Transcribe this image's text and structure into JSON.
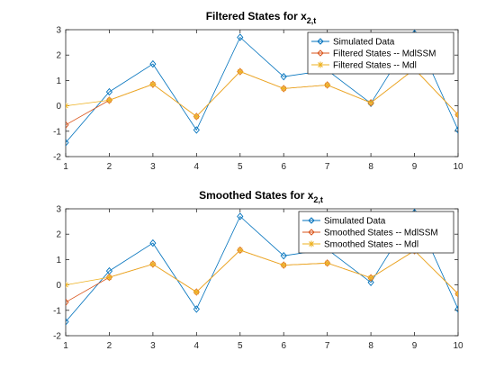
{
  "colors": {
    "simulated": "#0072bd",
    "mdlssm": "#d95319",
    "mdl": "#edb120",
    "axis": "#262626"
  },
  "chart_data": [
    {
      "type": "line",
      "title": {
        "main": "Filtered States for x",
        "sub": "2,t"
      },
      "x": [
        1,
        2,
        3,
        4,
        5,
        6,
        7,
        8,
        9,
        10
      ],
      "xlim": [
        1,
        10
      ],
      "ylim": [
        -2,
        3
      ],
      "xticks": [
        1,
        2,
        3,
        4,
        5,
        6,
        7,
        8,
        9,
        10
      ],
      "yticks": [
        3,
        2,
        1,
        0,
        -1,
        -2
      ],
      "legend_position": "top-right",
      "series": [
        {
          "name": "Simulated Data",
          "marker": "diamond",
          "color_key": "simulated",
          "values": [
            -1.45,
            0.55,
            1.65,
            -0.95,
            2.7,
            1.15,
            1.4,
            0.1,
            2.85,
            -0.95
          ]
        },
        {
          "name": "Filtered States -- MdlSSM",
          "marker": "diamond",
          "color_key": "mdlssm",
          "values": [
            -0.75,
            0.22,
            0.85,
            -0.42,
            1.35,
            0.68,
            0.82,
            0.12,
            1.45,
            -0.35
          ]
        },
        {
          "name": "Filtered States -- Mdl",
          "marker": "asterisk",
          "color_key": "mdl",
          "values": [
            0.0,
            0.22,
            0.85,
            -0.42,
            1.35,
            0.68,
            0.82,
            0.12,
            1.45,
            -0.35
          ]
        }
      ]
    },
    {
      "type": "line",
      "title": {
        "main": "Smoothed States for x",
        "sub": "2,t"
      },
      "x": [
        1,
        2,
        3,
        4,
        5,
        6,
        7,
        8,
        9,
        10
      ],
      "xlim": [
        1,
        10
      ],
      "ylim": [
        -2,
        3
      ],
      "xticks": [
        1,
        2,
        3,
        4,
        5,
        6,
        7,
        8,
        9,
        10
      ],
      "yticks": [
        3,
        2,
        1,
        0,
        -1,
        -2
      ],
      "legend_position": "top-right",
      "series": [
        {
          "name": "Simulated Data",
          "marker": "diamond",
          "color_key": "simulated",
          "values": [
            -1.45,
            0.55,
            1.65,
            -0.95,
            2.7,
            1.15,
            1.4,
            0.1,
            2.85,
            -0.95
          ]
        },
        {
          "name": "Smoothed States -- MdlSSM",
          "marker": "diamond",
          "color_key": "mdlssm",
          "values": [
            -0.68,
            0.3,
            0.82,
            -0.28,
            1.37,
            0.78,
            0.86,
            0.28,
            1.35,
            -0.35
          ]
        },
        {
          "name": "Smoothed States -- Mdl",
          "marker": "asterisk",
          "color_key": "mdl",
          "values": [
            0.0,
            0.3,
            0.82,
            -0.28,
            1.37,
            0.78,
            0.86,
            0.28,
            1.35,
            -0.35
          ]
        }
      ]
    }
  ]
}
